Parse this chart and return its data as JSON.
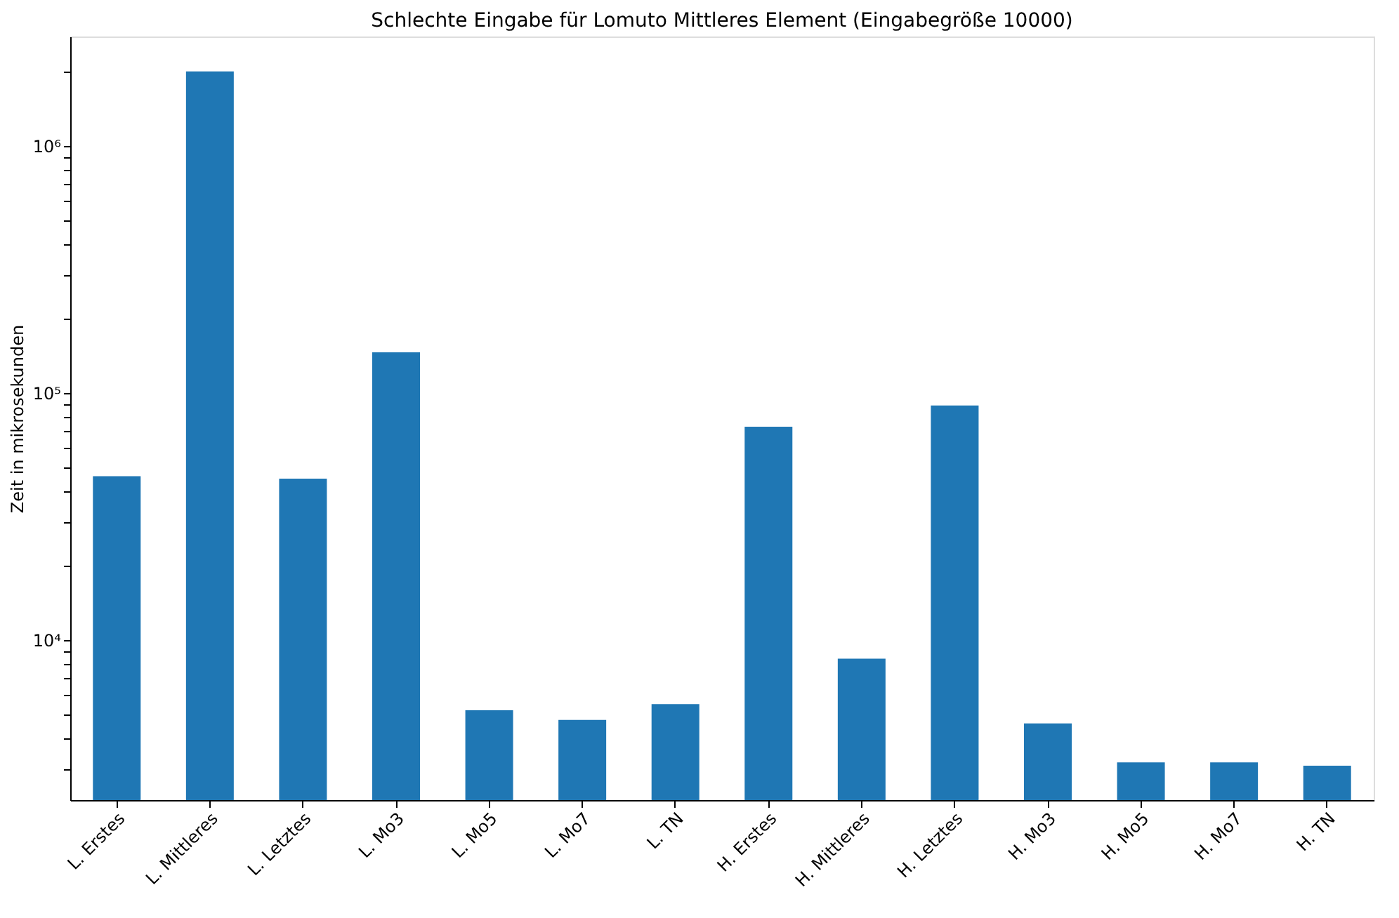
{
  "chart_data": {
    "type": "bar",
    "title": "Schlechte Eingabe für Lomuto Mittleres Element (Eingabegröße 10000)",
    "ylabel": "Zeit in mikrosekunden",
    "categories": [
      "L. Erstes",
      "L. Mittleres",
      "L. Letztes",
      "L. Mo3",
      "L. Mo5",
      "L. Mo7",
      "L. TN",
      "H. Erstes",
      "H. Mittleres",
      "H. Letztes",
      "H. Mo3",
      "H. Mo5",
      "H. Mo7",
      "H. TN"
    ],
    "values": [
      46000,
      2000000,
      45000,
      146000,
      5200,
      4750,
      5500,
      73000,
      8400,
      89000,
      4600,
      3200,
      3200,
      3100
    ],
    "color": "#1f77b4",
    "log": true,
    "ylim": [
      2250,
      2770000
    ],
    "yticks": [
      {
        "value": 3000,
        "label": null
      },
      {
        "value": 4000,
        "label": null
      },
      {
        "value": 5000,
        "label": null
      },
      {
        "value": 6000,
        "label": null
      },
      {
        "value": 7000,
        "label": null
      },
      {
        "value": 8000,
        "label": null
      },
      {
        "value": 9000,
        "label": null
      },
      {
        "value": 10000,
        "label": "10⁴"
      },
      {
        "value": 20000,
        "label": null
      },
      {
        "value": 30000,
        "label": null
      },
      {
        "value": 40000,
        "label": null
      },
      {
        "value": 50000,
        "label": null
      },
      {
        "value": 60000,
        "label": null
      },
      {
        "value": 70000,
        "label": null
      },
      {
        "value": 80000,
        "label": null
      },
      {
        "value": 90000,
        "label": null
      },
      {
        "value": 100000,
        "label": "10⁵"
      },
      {
        "value": 200000,
        "label": null
      },
      {
        "value": 300000,
        "label": null
      },
      {
        "value": 400000,
        "label": null
      },
      {
        "value": 500000,
        "label": null
      },
      {
        "value": 600000,
        "label": null
      },
      {
        "value": 700000,
        "label": null
      },
      {
        "value": 800000,
        "label": null
      },
      {
        "value": 900000,
        "label": null
      },
      {
        "value": 1000000,
        "label": "10⁶"
      },
      {
        "value": 2000000,
        "label": null
      }
    ],
    "grid": false
  }
}
